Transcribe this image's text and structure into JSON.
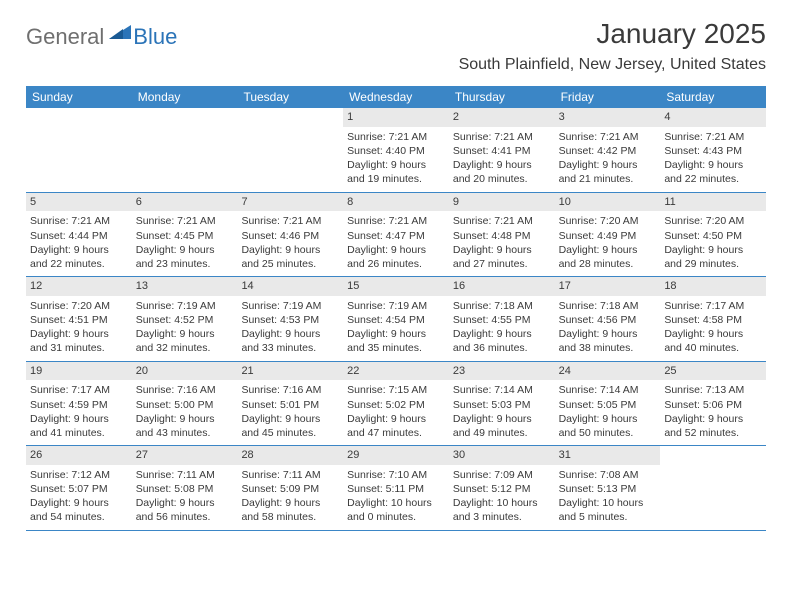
{
  "brand": {
    "part1": "General",
    "part2": "Blue"
  },
  "title": "January 2025",
  "location": "South Plainfield, New Jersey, United States",
  "colors": {
    "header_bar": "#3b86c6",
    "daynum_bg": "#e9e9e9",
    "row_border": "#3b86c6",
    "text": "#3a3a3a",
    "logo_gray": "#6f6f6f",
    "logo_blue": "#2b74b8"
  },
  "dow": [
    "Sunday",
    "Monday",
    "Tuesday",
    "Wednesday",
    "Thursday",
    "Friday",
    "Saturday"
  ],
  "weeks": [
    [
      null,
      null,
      null,
      {
        "n": "1",
        "sr": "7:21 AM",
        "ss": "4:40 PM",
        "dl": "9 hours and 19 minutes."
      },
      {
        "n": "2",
        "sr": "7:21 AM",
        "ss": "4:41 PM",
        "dl": "9 hours and 20 minutes."
      },
      {
        "n": "3",
        "sr": "7:21 AM",
        "ss": "4:42 PM",
        "dl": "9 hours and 21 minutes."
      },
      {
        "n": "4",
        "sr": "7:21 AM",
        "ss": "4:43 PM",
        "dl": "9 hours and 22 minutes."
      }
    ],
    [
      {
        "n": "5",
        "sr": "7:21 AM",
        "ss": "4:44 PM",
        "dl": "9 hours and 22 minutes."
      },
      {
        "n": "6",
        "sr": "7:21 AM",
        "ss": "4:45 PM",
        "dl": "9 hours and 23 minutes."
      },
      {
        "n": "7",
        "sr": "7:21 AM",
        "ss": "4:46 PM",
        "dl": "9 hours and 25 minutes."
      },
      {
        "n": "8",
        "sr": "7:21 AM",
        "ss": "4:47 PM",
        "dl": "9 hours and 26 minutes."
      },
      {
        "n": "9",
        "sr": "7:21 AM",
        "ss": "4:48 PM",
        "dl": "9 hours and 27 minutes."
      },
      {
        "n": "10",
        "sr": "7:20 AM",
        "ss": "4:49 PM",
        "dl": "9 hours and 28 minutes."
      },
      {
        "n": "11",
        "sr": "7:20 AM",
        "ss": "4:50 PM",
        "dl": "9 hours and 29 minutes."
      }
    ],
    [
      {
        "n": "12",
        "sr": "7:20 AM",
        "ss": "4:51 PM",
        "dl": "9 hours and 31 minutes."
      },
      {
        "n": "13",
        "sr": "7:19 AM",
        "ss": "4:52 PM",
        "dl": "9 hours and 32 minutes."
      },
      {
        "n": "14",
        "sr": "7:19 AM",
        "ss": "4:53 PM",
        "dl": "9 hours and 33 minutes."
      },
      {
        "n": "15",
        "sr": "7:19 AM",
        "ss": "4:54 PM",
        "dl": "9 hours and 35 minutes."
      },
      {
        "n": "16",
        "sr": "7:18 AM",
        "ss": "4:55 PM",
        "dl": "9 hours and 36 minutes."
      },
      {
        "n": "17",
        "sr": "7:18 AM",
        "ss": "4:56 PM",
        "dl": "9 hours and 38 minutes."
      },
      {
        "n": "18",
        "sr": "7:17 AM",
        "ss": "4:58 PM",
        "dl": "9 hours and 40 minutes."
      }
    ],
    [
      {
        "n": "19",
        "sr": "7:17 AM",
        "ss": "4:59 PM",
        "dl": "9 hours and 41 minutes."
      },
      {
        "n": "20",
        "sr": "7:16 AM",
        "ss": "5:00 PM",
        "dl": "9 hours and 43 minutes."
      },
      {
        "n": "21",
        "sr": "7:16 AM",
        "ss": "5:01 PM",
        "dl": "9 hours and 45 minutes."
      },
      {
        "n": "22",
        "sr": "7:15 AM",
        "ss": "5:02 PM",
        "dl": "9 hours and 47 minutes."
      },
      {
        "n": "23",
        "sr": "7:14 AM",
        "ss": "5:03 PM",
        "dl": "9 hours and 49 minutes."
      },
      {
        "n": "24",
        "sr": "7:14 AM",
        "ss": "5:05 PM",
        "dl": "9 hours and 50 minutes."
      },
      {
        "n": "25",
        "sr": "7:13 AM",
        "ss": "5:06 PM",
        "dl": "9 hours and 52 minutes."
      }
    ],
    [
      {
        "n": "26",
        "sr": "7:12 AM",
        "ss": "5:07 PM",
        "dl": "9 hours and 54 minutes."
      },
      {
        "n": "27",
        "sr": "7:11 AM",
        "ss": "5:08 PM",
        "dl": "9 hours and 56 minutes."
      },
      {
        "n": "28",
        "sr": "7:11 AM",
        "ss": "5:09 PM",
        "dl": "9 hours and 58 minutes."
      },
      {
        "n": "29",
        "sr": "7:10 AM",
        "ss": "5:11 PM",
        "dl": "10 hours and 0 minutes."
      },
      {
        "n": "30",
        "sr": "7:09 AM",
        "ss": "5:12 PM",
        "dl": "10 hours and 3 minutes."
      },
      {
        "n": "31",
        "sr": "7:08 AM",
        "ss": "5:13 PM",
        "dl": "10 hours and 5 minutes."
      },
      null
    ]
  ]
}
